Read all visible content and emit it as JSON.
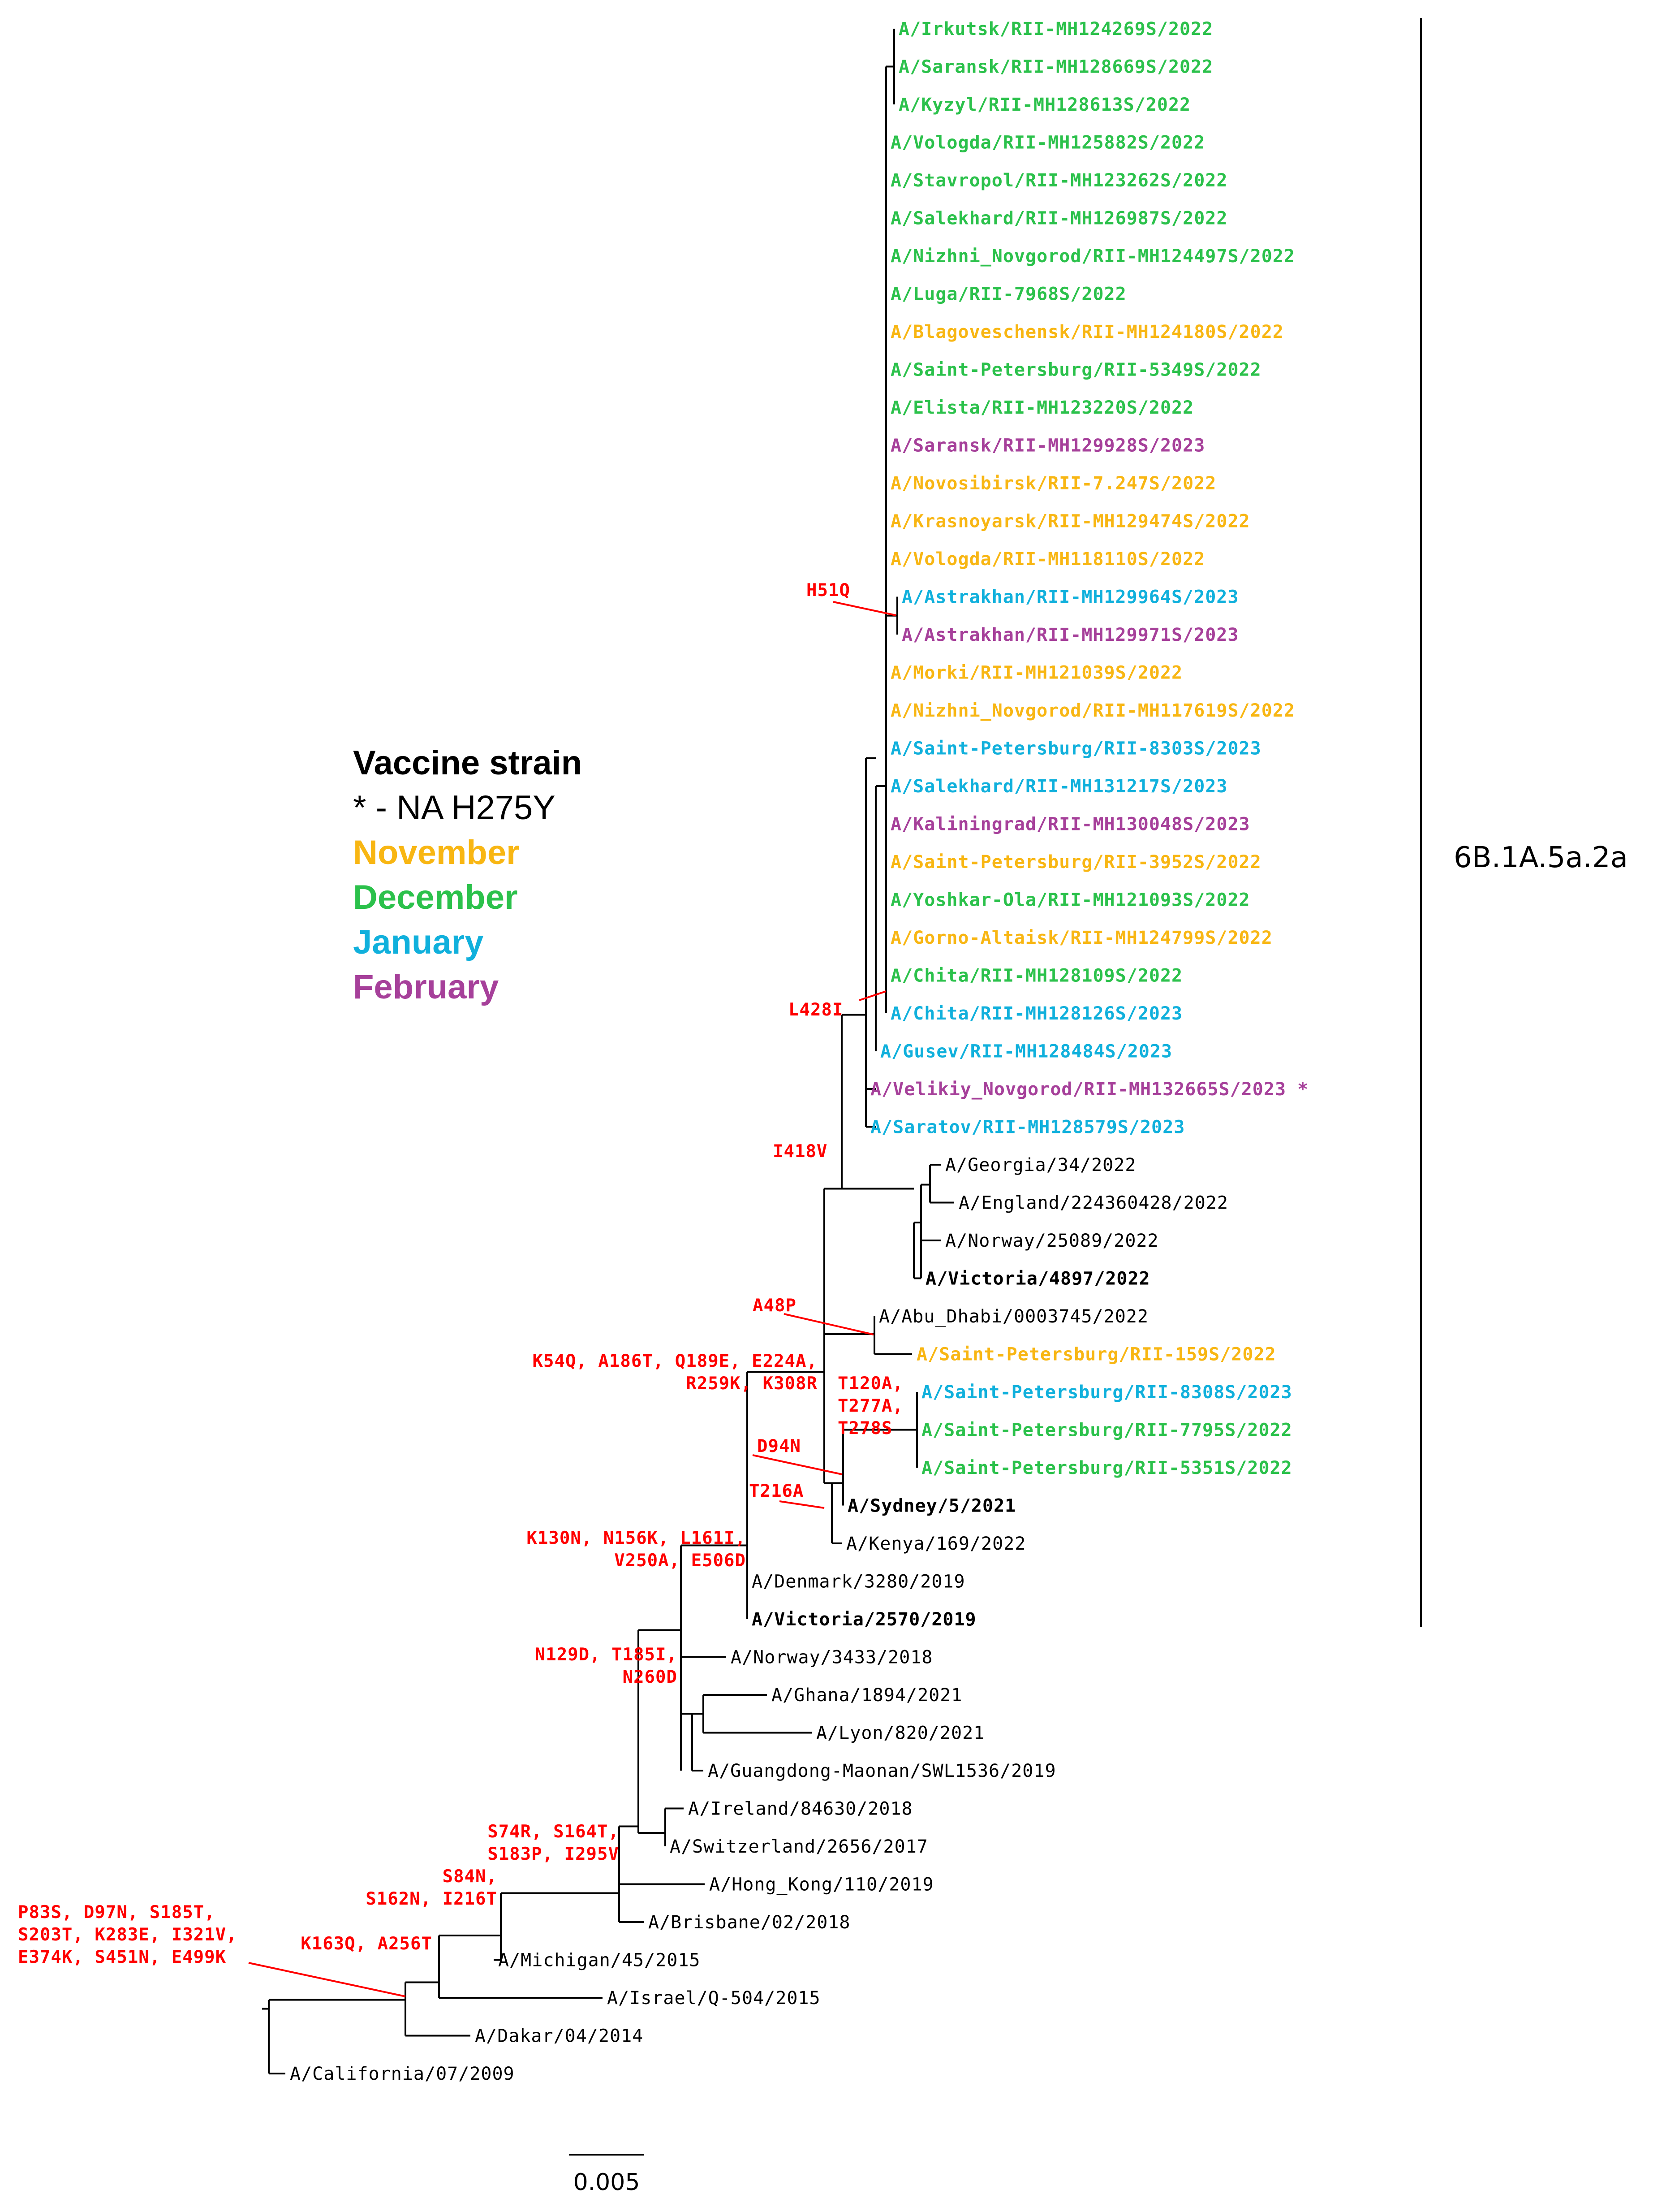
{
  "colors": {
    "november": "#f8b613",
    "december": "#2bc14b",
    "january": "#10b0dc",
    "february": "#a6409a",
    "vaccine": "#000000",
    "reference": "#000000",
    "mutation": "#ff0000"
  },
  "legend": {
    "vaccine": "Vaccine strain",
    "na": "* - NA H275Y",
    "november": "November",
    "december": "December",
    "january": "January",
    "february": "February"
  },
  "clade_label": "6B.1A.5a.2a",
  "scale_label": "0.005",
  "taxa": [
    {
      "label": "A/Irkutsk/RII-MH124269S/2022",
      "month": "december"
    },
    {
      "label": "A/Saransk/RII-MH128669S/2022",
      "month": "december"
    },
    {
      "label": "A/Kyzyl/RII-MH128613S/2022",
      "month": "december"
    },
    {
      "label": "A/Vologda/RII-MH125882S/2022",
      "month": "december"
    },
    {
      "label": "A/Stavropol/RII-MH123262S/2022",
      "month": "december"
    },
    {
      "label": "A/Salekhard/RII-MH126987S/2022",
      "month": "december"
    },
    {
      "label": "A/Nizhni_Novgorod/RII-MH124497S/2022",
      "month": "december"
    },
    {
      "label": "A/Luga/RII-7968S/2022",
      "month": "december"
    },
    {
      "label": "A/Blagoveschensk/RII-MH124180S/2022",
      "month": "november"
    },
    {
      "label": "A/Saint-Petersburg/RII-5349S/2022",
      "month": "december"
    },
    {
      "label": "A/Elista/RII-MH123220S/2022",
      "month": "december"
    },
    {
      "label": "A/Saransk/RII-MH129928S/2023",
      "month": "february"
    },
    {
      "label": "A/Novosibirsk/RII-7.247S/2022",
      "month": "november"
    },
    {
      "label": "A/Krasnoyarsk/RII-MH129474S/2022",
      "month": "november"
    },
    {
      "label": "A/Vologda/RII-MH118110S/2022",
      "month": "november"
    },
    {
      "label": "A/Astrakhan/RII-MH129964S/2023",
      "month": "january"
    },
    {
      "label": "A/Astrakhan/RII-MH129971S/2023",
      "month": "february"
    },
    {
      "label": "A/Morki/RII-MH121039S/2022",
      "month": "november"
    },
    {
      "label": "A/Nizhni_Novgorod/RII-MH117619S/2022",
      "month": "november"
    },
    {
      "label": "A/Saint-Petersburg/RII-8303S/2023",
      "month": "january"
    },
    {
      "label": "A/Salekhard/RII-MH131217S/2023",
      "month": "january"
    },
    {
      "label": "A/Kaliningrad/RII-MH130048S/2023",
      "month": "february"
    },
    {
      "label": "A/Saint-Petersburg/RII-3952S/2022",
      "month": "november"
    },
    {
      "label": "A/Yoshkar-Ola/RII-MH121093S/2022",
      "month": "december"
    },
    {
      "label": "A/Gorno-Altaisk/RII-MH124799S/2022",
      "month": "november"
    },
    {
      "label": "A/Chita/RII-MH128109S/2022",
      "month": "december"
    },
    {
      "label": "A/Chita/RII-MH128126S/2023",
      "month": "january"
    },
    {
      "label": "A/Gusev/RII-MH128484S/2023",
      "month": "january"
    },
    {
      "label": "A/Velikiy_Novgorod/RII-MH132665S/2023 *",
      "month": "february"
    },
    {
      "label": "A/Saratov/RII-MH128579S/2023",
      "month": "january"
    },
    {
      "label": "A/Georgia/34/2022",
      "month": "reference"
    },
    {
      "label": "A/England/224360428/2022",
      "month": "reference"
    },
    {
      "label": "A/Norway/25089/2022",
      "month": "reference"
    },
    {
      "label": "A/Victoria/4897/2022",
      "month": "vaccine"
    },
    {
      "label": "A/Abu_Dhabi/0003745/2022",
      "month": "reference"
    },
    {
      "label": "A/Saint-Petersburg/RII-159S/2022",
      "month": "november"
    },
    {
      "label": "A/Saint-Petersburg/RII-8308S/2023",
      "month": "january"
    },
    {
      "label": "A/Saint-Petersburg/RII-7795S/2022",
      "month": "december"
    },
    {
      "label": "A/Saint-Petersburg/RII-5351S/2022",
      "month": "december"
    },
    {
      "label": "A/Sydney/5/2021",
      "month": "vaccine"
    },
    {
      "label": "A/Kenya/169/2022",
      "month": "reference"
    },
    {
      "label": "A/Denmark/3280/2019",
      "month": "reference"
    },
    {
      "label": "A/Victoria/2570/2019",
      "month": "vaccine"
    },
    {
      "label": "A/Norway/3433/2018",
      "month": "reference"
    },
    {
      "label": "A/Ghana/1894/2021",
      "month": "reference"
    },
    {
      "label": "A/Lyon/820/2021",
      "month": "reference"
    },
    {
      "label": "A/Guangdong-Maonan/SWL1536/2019",
      "month": "reference"
    },
    {
      "label": "A/Ireland/84630/2018",
      "month": "reference"
    },
    {
      "label": "A/Switzerland/2656/2017",
      "month": "reference"
    },
    {
      "label": "A/Hong_Kong/110/2019",
      "month": "reference"
    },
    {
      "label": "A/Brisbane/02/2018",
      "month": "reference"
    },
    {
      "label": "A/Michigan/45/2015",
      "month": "reference"
    },
    {
      "label": "A/Israel/Q-504/2015",
      "month": "reference"
    },
    {
      "label": "A/Dakar/04/2014",
      "month": "reference"
    },
    {
      "label": "A/California/07/2009",
      "month": "reference"
    }
  ],
  "mutations": {
    "h51q": [
      "H51Q"
    ],
    "l428i": [
      "L428I"
    ],
    "i418v": [
      "I418V"
    ],
    "a48p": [
      "A48P"
    ],
    "k54q": [
      "K54Q, A186T, Q189E, E224A,",
      "R259K, K308R"
    ],
    "t120a": [
      "T120A,",
      "T277A,",
      "T278S"
    ],
    "d94n": [
      "D94N"
    ],
    "t216a": [
      "T216A"
    ],
    "k130n": [
      "K130N, N156K, L161I,",
      "V250A, E506D"
    ],
    "n129d": [
      "N129D, T185I,",
      "N260D"
    ],
    "s74r": [
      "S74R, S164T,",
      "S183P, I295V"
    ],
    "s84n": [
      "S84N,",
      "S162N, I216T"
    ],
    "k163q": [
      "K163Q, A256T"
    ],
    "p83s": [
      "P83S, D97N, S185T,",
      "S203T, K283E, I321V,",
      "E374K, S451N, E499K"
    ]
  }
}
